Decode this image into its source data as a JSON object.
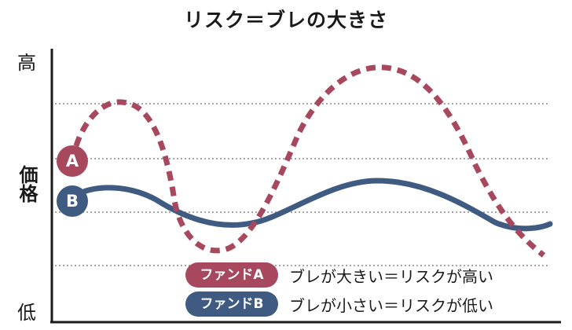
{
  "title": "リスク＝ブレの大きさ",
  "y_axis": {
    "high": "高",
    "mid": "価格",
    "low": "低"
  },
  "badges": {
    "a": "A",
    "b": "B"
  },
  "legend": [
    {
      "key": "ファンドA",
      "text": "ブレが大きい＝リスクが高い",
      "color": "#a8485f"
    },
    {
      "key": "ファンドB",
      "text": "ブレが小さい＝リスクが低い",
      "color": "#3f5b82"
    }
  ],
  "colors": {
    "fund_a": "#a8485f",
    "fund_b": "#3f5b82",
    "axis": "#1a1a1a",
    "grid": "#888888"
  }
}
